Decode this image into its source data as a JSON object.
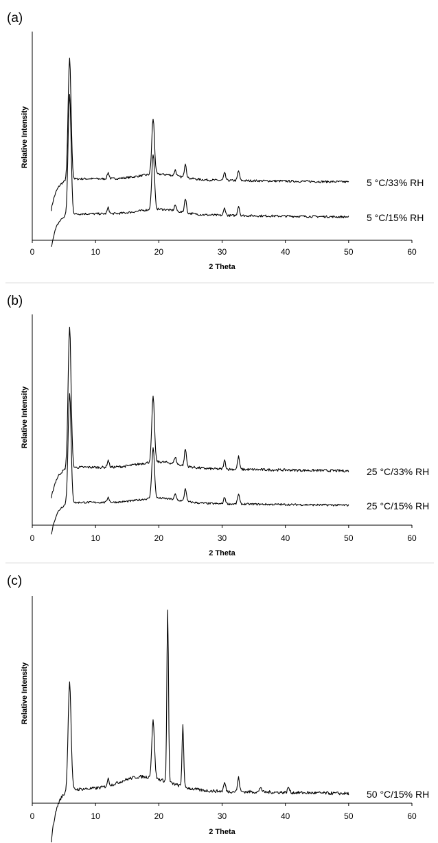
{
  "chart_data": [
    {
      "panel": "(a)",
      "type": "line",
      "title": "",
      "xlabel": "2 Theta",
      "ylabel": "Relative Intensity",
      "xlim": [
        0,
        60
      ],
      "xticks": [
        0,
        10,
        20,
        30,
        40,
        50,
        60
      ],
      "grid": false,
      "series": [
        {
          "name": "5 °C/33% RH",
          "peaks": [
            {
              "two_theta": 5.9,
              "height": 1.0
            },
            {
              "two_theta": 12.0,
              "height": 0.05
            },
            {
              "two_theta": 19.1,
              "height": 0.46
            },
            {
              "two_theta": 22.6,
              "height": 0.05
            },
            {
              "two_theta": 24.2,
              "height": 0.12
            },
            {
              "two_theta": 30.4,
              "height": 0.06
            },
            {
              "two_theta": 32.6,
              "height": 0.08
            }
          ]
        },
        {
          "name": "5 °C/15% RH",
          "peaks": [
            {
              "two_theta": 5.9,
              "height": 1.0
            },
            {
              "two_theta": 12.0,
              "height": 0.05
            },
            {
              "two_theta": 19.1,
              "height": 0.46
            },
            {
              "two_theta": 22.6,
              "height": 0.05
            },
            {
              "two_theta": 24.2,
              "height": 0.12
            },
            {
              "two_theta": 30.4,
              "height": 0.06
            },
            {
              "two_theta": 32.6,
              "height": 0.08
            }
          ]
        }
      ]
    },
    {
      "panel": "(b)",
      "type": "line",
      "title": "",
      "xlabel": "2 Theta",
      "ylabel": "Relative Intensity",
      "xlim": [
        0,
        60
      ],
      "xticks": [
        0,
        10,
        20,
        30,
        40,
        50,
        60
      ],
      "grid": false,
      "series": [
        {
          "name": "25 °C/33% RH",
          "peaks": [
            {
              "two_theta": 5.9,
              "height": 1.0
            },
            {
              "two_theta": 12.0,
              "height": 0.05
            },
            {
              "two_theta": 19.1,
              "height": 0.46
            },
            {
              "two_theta": 22.6,
              "height": 0.05
            },
            {
              "two_theta": 24.2,
              "height": 0.12
            },
            {
              "two_theta": 30.4,
              "height": 0.06
            },
            {
              "two_theta": 32.6,
              "height": 0.09
            }
          ]
        },
        {
          "name": "25 °C/15% RH",
          "peaks": [
            {
              "two_theta": 5.9,
              "height": 1.0
            },
            {
              "two_theta": 12.0,
              "height": 0.05
            },
            {
              "two_theta": 19.1,
              "height": 0.46
            },
            {
              "two_theta": 22.6,
              "height": 0.05
            },
            {
              "two_theta": 24.2,
              "height": 0.12
            },
            {
              "two_theta": 30.4,
              "height": 0.06
            },
            {
              "two_theta": 32.6,
              "height": 0.09
            }
          ]
        }
      ]
    },
    {
      "panel": "(c)",
      "type": "line",
      "title": "",
      "xlabel": "2 Theta",
      "ylabel": "Relative Intensity",
      "xlim": [
        0,
        60
      ],
      "xticks": [
        0,
        10,
        20,
        30,
        40,
        50,
        60
      ],
      "grid": false,
      "series": [
        {
          "name": "50 °C/15% RH",
          "peaks": [
            {
              "two_theta": 5.9,
              "height": 0.63
            },
            {
              "two_theta": 12.0,
              "height": 0.04
            },
            {
              "two_theta": 19.1,
              "height": 0.33
            },
            {
              "two_theta": 21.4,
              "height": 1.0
            },
            {
              "two_theta": 23.8,
              "height": 0.36
            },
            {
              "two_theta": 30.4,
              "height": 0.05
            },
            {
              "two_theta": 32.6,
              "height": 0.08
            },
            {
              "two_theta": 36.1,
              "height": 0.03
            },
            {
              "two_theta": 40.5,
              "height": 0.03
            }
          ]
        }
      ]
    }
  ]
}
